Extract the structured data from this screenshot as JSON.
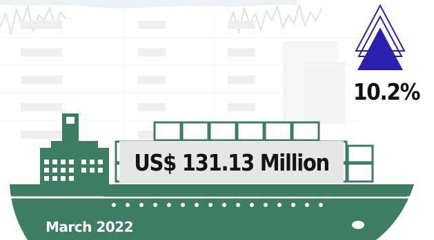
{
  "trade": {
    "amount": "US$ 131.13 Million",
    "growth_percent": "10.2%",
    "period": "March 2022"
  },
  "icons": {
    "growth": "up-triangle-icon",
    "ship": "cargo-ship-icon"
  },
  "colors": {
    "ship": "#3c7d64",
    "triangle": "#2b1fb0",
    "label_bg": "#e7e6e6"
  }
}
